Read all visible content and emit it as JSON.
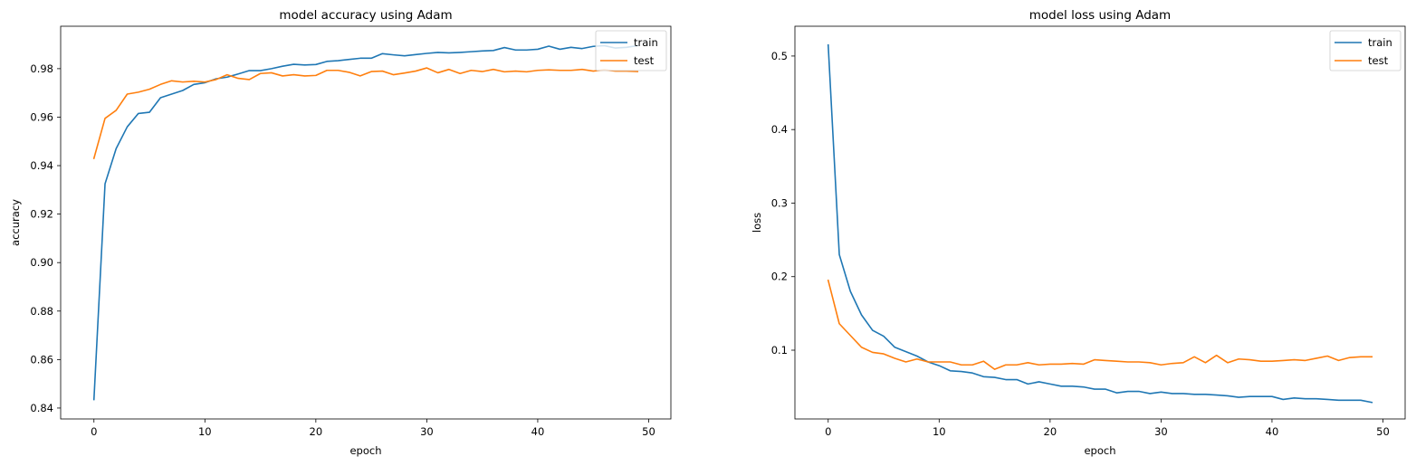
{
  "chart_data": [
    {
      "type": "line",
      "title": "model accuracy using Adam",
      "xlabel": "epoch",
      "ylabel": "accuracy",
      "xlim": [
        -3,
        52
      ],
      "ylim": [
        0.8355,
        0.9975
      ],
      "xticks": [
        0,
        10,
        20,
        30,
        40,
        50
      ],
      "yticks": [
        0.84,
        0.86,
        0.88,
        0.9,
        0.92,
        0.94,
        0.96,
        0.98
      ],
      "yticklabels": [
        "0.84",
        "0.86",
        "0.88",
        "0.90",
        "0.92",
        "0.94",
        "0.96",
        "0.98"
      ],
      "grid": false,
      "legend_position": "upper right",
      "x": [
        0,
        1,
        2,
        3,
        4,
        5,
        6,
        7,
        8,
        9,
        10,
        11,
        12,
        13,
        14,
        15,
        16,
        17,
        18,
        19,
        20,
        21,
        22,
        23,
        24,
        25,
        26,
        27,
        28,
        29,
        30,
        31,
        32,
        33,
        34,
        35,
        36,
        37,
        38,
        39,
        40,
        41,
        42,
        43,
        44,
        45,
        46,
        47,
        48,
        49
      ],
      "series": [
        {
          "name": "train",
          "color": "#1f77b4",
          "values": [
            0.8435,
            0.9325,
            0.947,
            0.956,
            0.9615,
            0.962,
            0.968,
            0.9695,
            0.971,
            0.9735,
            0.9742,
            0.9758,
            0.9765,
            0.9778,
            0.9792,
            0.9792,
            0.98,
            0.981,
            0.9818,
            0.9815,
            0.9817,
            0.983,
            0.9833,
            0.9838,
            0.9843,
            0.9843,
            0.9862,
            0.9857,
            0.9853,
            0.9858,
            0.9863,
            0.9867,
            0.9865,
            0.9867,
            0.987,
            0.9873,
            0.9875,
            0.9887,
            0.9877,
            0.9877,
            0.988,
            0.9893,
            0.988,
            0.9888,
            0.9883,
            0.9892,
            0.9895,
            0.9885,
            0.9888,
            0.9895
          ]
        },
        {
          "name": "test",
          "color": "#ff7f0e",
          "values": [
            0.943,
            0.9595,
            0.9628,
            0.9695,
            0.9703,
            0.9715,
            0.9735,
            0.975,
            0.9745,
            0.9748,
            0.9745,
            0.9755,
            0.9775,
            0.976,
            0.9755,
            0.978,
            0.9783,
            0.977,
            0.9775,
            0.977,
            0.9772,
            0.9793,
            0.9793,
            0.9785,
            0.977,
            0.9788,
            0.979,
            0.9775,
            0.9782,
            0.979,
            0.9803,
            0.9783,
            0.9797,
            0.978,
            0.9793,
            0.9788,
            0.9797,
            0.9787,
            0.979,
            0.9787,
            0.9793,
            0.9795,
            0.9793,
            0.9793,
            0.9797,
            0.979,
            0.9795,
            0.979,
            0.979,
            0.9788
          ]
        }
      ]
    },
    {
      "type": "line",
      "title": "model loss using Adam",
      "xlabel": "epoch",
      "ylabel": "loss",
      "xlim": [
        -3,
        52
      ],
      "ylim": [
        0.0065,
        0.5405
      ],
      "xticks": [
        0,
        10,
        20,
        30,
        40,
        50
      ],
      "yticks": [
        0.1,
        0.2,
        0.3,
        0.4,
        0.5
      ],
      "yticklabels": [
        "0.1",
        "0.2",
        "0.3",
        "0.4",
        "0.5"
      ],
      "grid": false,
      "legend_position": "upper right",
      "x": [
        0,
        1,
        2,
        3,
        4,
        5,
        6,
        7,
        8,
        9,
        10,
        11,
        12,
        13,
        14,
        15,
        16,
        17,
        18,
        19,
        20,
        21,
        22,
        23,
        24,
        25,
        26,
        27,
        28,
        29,
        30,
        31,
        32,
        33,
        34,
        35,
        36,
        37,
        38,
        39,
        40,
        41,
        42,
        43,
        44,
        45,
        46,
        47,
        48,
        49
      ],
      "series": [
        {
          "name": "train",
          "color": "#1f77b4",
          "values": [
            0.515,
            0.23,
            0.18,
            0.148,
            0.127,
            0.119,
            0.104,
            0.098,
            0.092,
            0.084,
            0.079,
            0.072,
            0.071,
            0.069,
            0.064,
            0.063,
            0.06,
            0.06,
            0.054,
            0.057,
            0.054,
            0.051,
            0.051,
            0.05,
            0.047,
            0.047,
            0.042,
            0.044,
            0.044,
            0.041,
            0.043,
            0.041,
            0.041,
            0.04,
            0.04,
            0.039,
            0.038,
            0.036,
            0.037,
            0.037,
            0.037,
            0.033,
            0.035,
            0.034,
            0.034,
            0.033,
            0.032,
            0.032,
            0.032,
            0.029
          ]
        },
        {
          "name": "test",
          "color": "#ff7f0e",
          "values": [
            0.195,
            0.136,
            0.12,
            0.104,
            0.097,
            0.095,
            0.089,
            0.084,
            0.088,
            0.084,
            0.084,
            0.084,
            0.08,
            0.08,
            0.085,
            0.074,
            0.08,
            0.08,
            0.083,
            0.08,
            0.081,
            0.081,
            0.082,
            0.081,
            0.087,
            0.086,
            0.085,
            0.084,
            0.084,
            0.083,
            0.08,
            0.082,
            0.083,
            0.091,
            0.083,
            0.093,
            0.083,
            0.088,
            0.087,
            0.085,
            0.085,
            0.086,
            0.087,
            0.086,
            0.089,
            0.092,
            0.086,
            0.09,
            0.091,
            0.091
          ]
        }
      ]
    }
  ]
}
